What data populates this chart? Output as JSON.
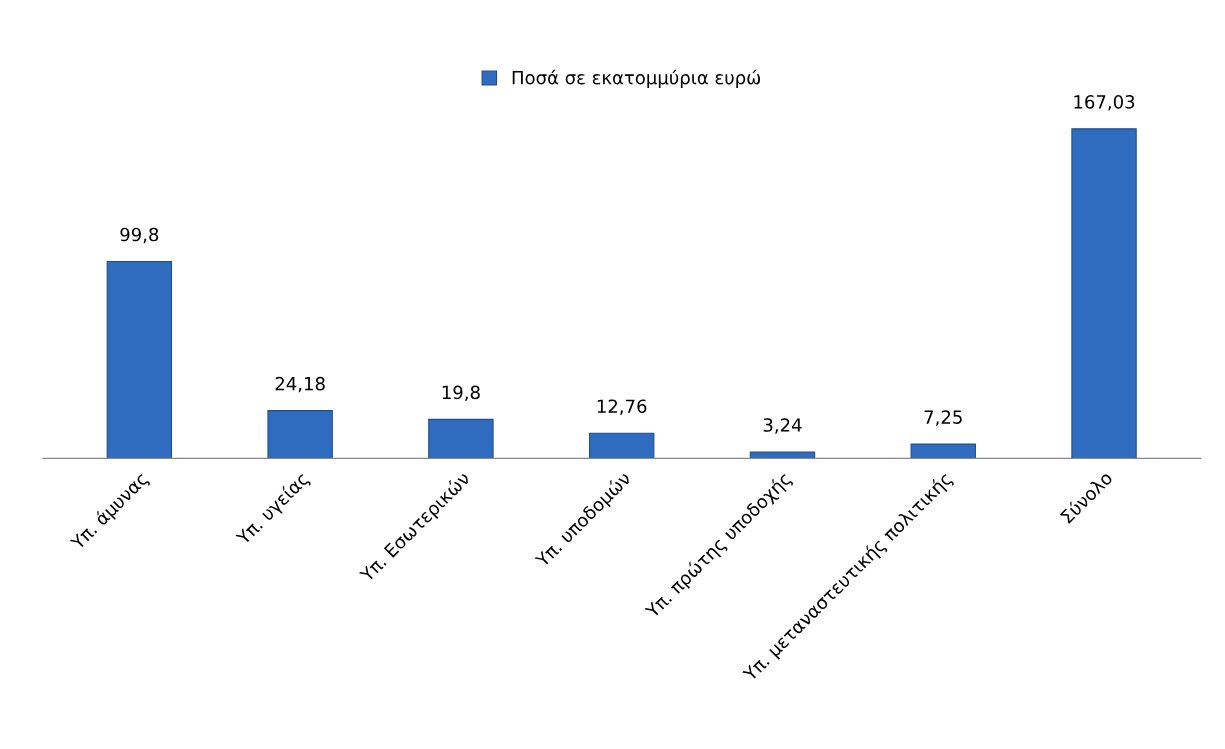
{
  "chart_data": {
    "type": "bar",
    "categories": [
      "Υπ. άμυνας",
      "Υπ. υγείας",
      "Υπ. Εσωτερικών",
      "Υπ. υποδομών",
      "Υπ. πρώτης υποδοχής",
      "Υπ. μεταναστευτικής πολιτικής",
      "Σύνολο"
    ],
    "series": [
      {
        "name": "Ποσά σε εκατομμύρια ευρώ",
        "color": "#2f6cbf",
        "values": [
          99.8,
          24.18,
          19.8,
          12.76,
          3.24,
          7.25,
          167.03
        ],
        "value_labels": [
          "99,8",
          "24,18",
          "19,8",
          "12,76",
          "3,24",
          "7,25",
          "167,03"
        ]
      }
    ],
    "legend": "top",
    "grid": false
  }
}
